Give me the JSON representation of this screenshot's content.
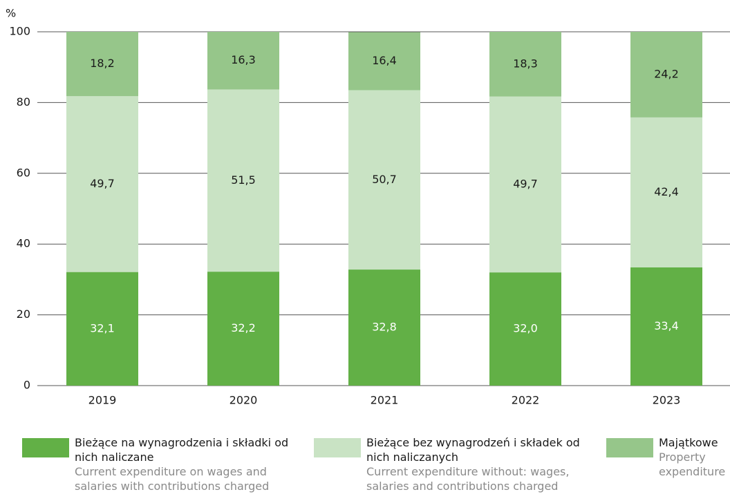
{
  "chart_data": {
    "type": "stacked_bar",
    "y_label": "%",
    "categories": [
      "2019",
      "2020",
      "2021",
      "2022",
      "2023"
    ],
    "series": [
      {
        "name": "Bieżące na wynagrodzenia i składki od nich naliczane",
        "description": "Current expenditure on wages and salaries with contributions charged",
        "color": "#62b046",
        "label_color": "#ffffff",
        "values": [
          32.1,
          32.2,
          32.8,
          32.0,
          33.4
        ],
        "value_labels": [
          "32,1",
          "32,2",
          "32,8",
          "32,0",
          "33,4"
        ]
      },
      {
        "name": "Bieżące bez wynagrodzeń i składek od nich naliczanych",
        "description": "Current expenditure without: wages, salaries and contributions charged",
        "color": "#c9e3c4",
        "label_color": "#1a1a1a",
        "values": [
          49.7,
          51.5,
          50.7,
          49.7,
          42.4
        ],
        "value_labels": [
          "49,7",
          "51,5",
          "50,7",
          "49,7",
          "42,4"
        ]
      },
      {
        "name": "Majątkowe",
        "description": "Property expenditure",
        "color": "#96c68a",
        "label_color": "#1a1a1a",
        "values": [
          18.2,
          16.3,
          16.4,
          18.3,
          24.2
        ],
        "value_labels": [
          "18,2",
          "16,3",
          "16,4",
          "18,3",
          "24,2"
        ]
      }
    ],
    "ylim": [
      0,
      100
    ],
    "yticks": [
      0,
      20,
      40,
      60,
      80,
      100
    ],
    "grid": true
  }
}
